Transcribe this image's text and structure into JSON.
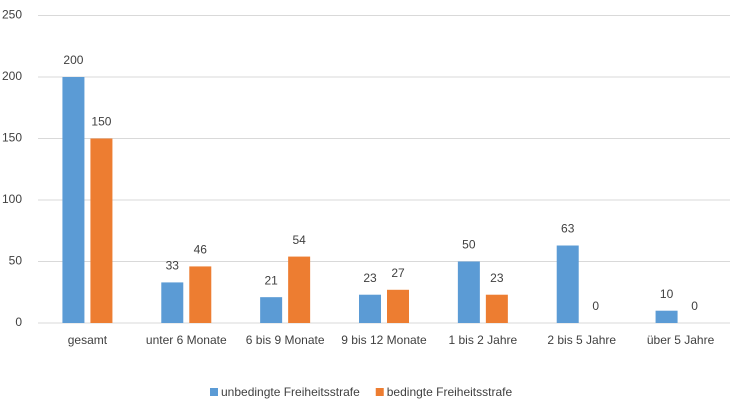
{
  "chart_data": {
    "type": "bar",
    "categories": [
      "gesamt",
      "unter 6 Monate",
      "6 bis 9 Monate",
      "9 bis 12 Monate",
      "1 bis 2 Jahre",
      "2 bis 5 Jahre",
      "über 5 Jahre"
    ],
    "series": [
      {
        "name": "unbedingte Freiheitsstrafe",
        "color": "#5b9bd5",
        "values": [
          200,
          33,
          21,
          23,
          50,
          63,
          10
        ]
      },
      {
        "name": "bedingte Freiheitsstrafe",
        "color": "#ed7d31",
        "values": [
          150,
          46,
          54,
          27,
          23,
          0,
          0
        ]
      }
    ],
    "ylim": [
      0,
      250
    ],
    "yticks": [
      0,
      50,
      100,
      150,
      200,
      250
    ],
    "grid": true,
    "legend": "bottom"
  }
}
